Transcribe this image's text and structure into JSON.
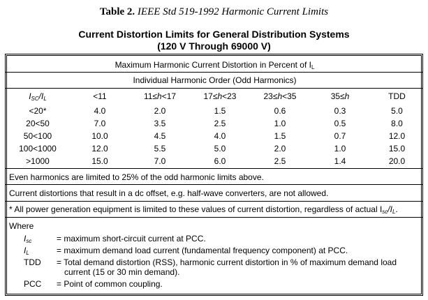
{
  "caption": {
    "prefix": "Table 2.",
    "title": "IEEE Std 519-1992 Harmonic Current Limits"
  },
  "heading": {
    "line1": "Current Distortion Limits for General Distribution Systems",
    "line2": "(120 V Through 69000 V)"
  },
  "table": {
    "header_main": "Maximum Harmonic Current Distortion in Percent of I",
    "header_main_sub": "L",
    "header_sub": "Individual Harmonic Order (Odd Harmonics)",
    "columns": [
      {
        "pre": "I",
        "sub": "SC",
        "post": "/I",
        "sub2": "L"
      },
      {
        "pre": "<11",
        "sub": "",
        "post": "",
        "sub2": ""
      },
      {
        "pre": "11≤",
        "h": "h",
        "post": "<17"
      },
      {
        "pre": "17≤",
        "h": "h",
        "post": "<23"
      },
      {
        "pre": "23≤",
        "h": "h",
        "post": "<35"
      },
      {
        "pre": "35≤",
        "h": "h",
        "post": ""
      },
      {
        "pre": "TDD",
        "sub": "",
        "post": "",
        "sub2": ""
      }
    ],
    "rows": [
      [
        "<20*",
        "4.0",
        "2.0",
        "1.5",
        "0.6",
        "0.3",
        "5.0"
      ],
      [
        "20<50",
        "7.0",
        "3.5",
        "2.5",
        "1.0",
        "0.5",
        "8.0"
      ],
      [
        "50<100",
        "10.0",
        "4.5",
        "4.0",
        "1.5",
        "0.7",
        "12.0"
      ],
      [
        "100<1000",
        "12.0",
        "5.5",
        "5.0",
        "2.0",
        "1.0",
        "15.0"
      ],
      [
        ">1000",
        "15.0",
        "7.0",
        "6.0",
        "2.5",
        "1.4",
        "20.0"
      ]
    ]
  },
  "notes": {
    "even": "Even harmonics are limited to 25% of the odd harmonic limits above.",
    "dc": "Current distortions that result in a dc offset, e.g. half-wave converters, are not allowed.",
    "gen_pre": "* All power generation equipment is limited to these values of current distortion, regardless of actual I",
    "gen_sub1": "sc",
    "gen_mid": "/I",
    "gen_sub2": "L",
    "gen_post": "."
  },
  "where": {
    "label": "Where",
    "defs": [
      {
        "sym": "I",
        "sub": "sc",
        "desc": "= maximum short-circuit current at PCC.",
        "desc2": ""
      },
      {
        "sym": "I",
        "sub": "L",
        "desc": "= maximum demand load current (fundamental frequency component) at PCC.",
        "desc2": ""
      },
      {
        "sym": "TDD",
        "sub": "",
        "desc": "= Total demand distortion (RSS), harmonic current distortion in % of maximum demand load",
        "desc2": "current (15 or 30 min demand)."
      },
      {
        "sym": "PCC",
        "sub": "",
        "desc": "= Point of common coupling.",
        "desc2": ""
      }
    ]
  }
}
